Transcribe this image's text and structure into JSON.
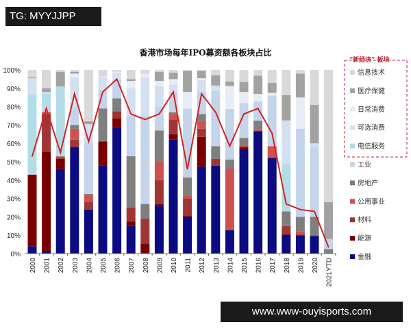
{
  "watermarks": {
    "top": "TG: MYYJJPP",
    "bottom": "www.www-ouyisports.com"
  },
  "chart_data": {
    "type": "bar",
    "stacked": true,
    "title": "香港市场每年IPO募资额各板块占比",
    "categories": [
      "2000",
      "2001",
      "2002",
      "2003",
      "2004",
      "2005",
      "2006",
      "2007",
      "2008",
      "2009",
      "2010",
      "2011",
      "2012",
      "2013",
      "2014",
      "2015",
      "2016",
      "2017",
      "2018",
      "2019",
      "2020",
      "2021YTD"
    ],
    "ylim": [
      0,
      100
    ],
    "yticks": [
      "0%",
      "10%",
      "20%",
      "30%",
      "40%",
      "50%",
      "60%",
      "70%",
      "80%",
      "90%",
      "100%"
    ],
    "legend_group_label": "“新经济” 板块",
    "legend_position": "right",
    "series": [
      {
        "name": "金融",
        "color": "#0b0b82",
        "values": [
          4,
          1.5,
          46,
          58,
          24,
          48,
          68.5,
          15,
          0,
          26,
          62,
          20,
          47.5,
          47.75,
          12.75,
          57,
          66.6,
          52,
          10.25,
          10,
          9.6,
          0
        ]
      },
      {
        "name": "能源",
        "color": "#7a0000",
        "values": [
          39,
          54,
          5.5,
          0,
          0,
          13,
          5,
          2.5,
          5.5,
          1,
          3,
          0.5,
          16,
          0,
          0,
          1,
          0,
          0,
          0,
          0,
          0,
          0
        ]
      },
      {
        "name": "材料",
        "color": "#a03535",
        "values": [
          0,
          20.5,
          1,
          4,
          4,
          0,
          4,
          7.5,
          13.5,
          13,
          8,
          9.5,
          4.5,
          3.75,
          0,
          0,
          0,
          0.5,
          4.75,
          0.5,
          0.4,
          0
        ]
      },
      {
        "name": "公用事业",
        "color": "#d05050",
        "values": [
          0,
          1,
          0,
          6,
          4,
          0,
          0,
          0,
          0,
          10,
          3,
          1.5,
          4,
          0,
          33.5,
          1,
          0.8,
          6,
          0,
          1.5,
          0,
          0
        ]
      },
      {
        "name": "房地产",
        "color": "#7f7f7f",
        "values": [
          0,
          0,
          0.5,
          2,
          0.5,
          18,
          7,
          28,
          8,
          17,
          1,
          10,
          4,
          7,
          5,
          4,
          5,
          0,
          8,
          8,
          10,
          2.5
        ]
      },
      {
        "name": "工业",
        "color": "#c4d4ea",
        "values": [
          0.5,
          3,
          1,
          10,
          28,
          10,
          10,
          22,
          48,
          13,
          11,
          37.5,
          12,
          30,
          27.5,
          19,
          10.5,
          27.5,
          0,
          48,
          38,
          5.5
        ]
      },
      {
        "name": "电信服务",
        "color": "#b3dde6",
        "values": [
          43,
          7,
          37,
          0,
          0,
          0,
          0,
          0,
          0,
          0,
          0,
          0,
          0,
          0,
          0,
          0,
          0,
          0,
          25.75,
          0,
          0,
          0
        ]
      },
      {
        "name": "可选消费",
        "color": "#d3e0f0",
        "values": [
          9,
          1,
          0,
          16,
          10,
          7,
          4,
          15,
          21,
          11,
          4,
          0,
          6.5,
          3,
          0,
          0,
          0,
          0,
          23.75,
          0,
          2,
          0
        ]
      },
      {
        "name": "日常消费",
        "color": "#e7edf5",
        "values": [
          0,
          0,
          0,
          2,
          0,
          0.5,
          0.5,
          4,
          2,
          3,
          3,
          9,
          1,
          0,
          12.5,
          6,
          4,
          1.5,
          0,
          17,
          0,
          0
        ]
      },
      {
        "name": "医疗保健",
        "color": "#a2a2a2",
        "values": [
          0.5,
          2,
          8,
          1,
          1.5,
          0,
          0,
          1,
          0,
          5,
          3.5,
          11.5,
          4,
          5.5,
          2.5,
          5.5,
          10,
          5.5,
          13.75,
          13,
          21,
          20
        ]
      },
      {
        "name": "信息技术",
        "color": "#d9d9d9",
        "values": [
          4,
          10,
          1,
          1,
          28,
          3.5,
          1,
          5,
          2,
          1,
          1.5,
          0.5,
          0.5,
          3,
          6.25,
          6.5,
          3.1,
          7,
          13.75,
          2,
          19,
          72
        ]
      }
    ],
    "line": {
      "color": "#d42020",
      "values": [
        53,
        79,
        55,
        87,
        61,
        88,
        95,
        76,
        73,
        76,
        88,
        46,
        87,
        77,
        58.5,
        76,
        79,
        65.5,
        27,
        24,
        23,
        3.5
      ]
    },
    "grid": false
  }
}
